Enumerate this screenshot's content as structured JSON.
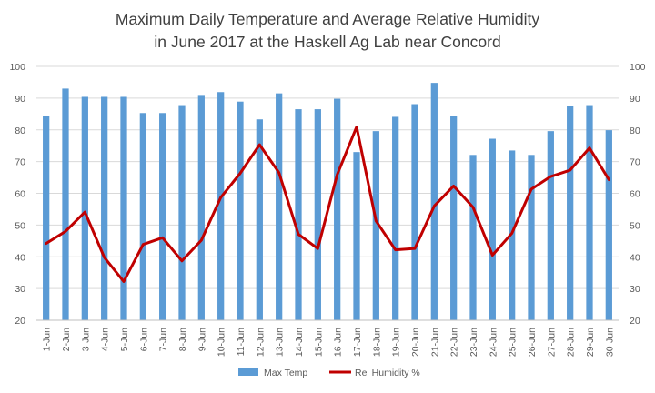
{
  "chart_data": {
    "type": "bar",
    "title": "Maximum Daily Temperature and Average Relative Humidity",
    "subtitle": "in June 2017 at the Haskell Ag Lab near Concord",
    "categories": [
      "1-Jun",
      "2-Jun",
      "3-Jun",
      "4-Jun",
      "5-Jun",
      "6-Jun",
      "7-Jun",
      "8-Jun",
      "9-Jun",
      "10-Jun",
      "11-Jun",
      "12-Jun",
      "13-Jun",
      "14-Jun",
      "15-Jun",
      "16-Jun",
      "17-Jun",
      "18-Jun",
      "19-Jun",
      "20-Jun",
      "21-Jun",
      "22-Jun",
      "23-Jun",
      "24-Jun",
      "25-Jun",
      "26-Jun",
      "27-Jun",
      "28-Jun",
      "29-Jun",
      "30-Jun"
    ],
    "series": [
      {
        "name": "Max Temp",
        "type": "bar",
        "axis": "left",
        "color": "#5b9bd5",
        "values": [
          84.3,
          93.0,
          90.4,
          90.4,
          90.4,
          85.3,
          85.3,
          87.8,
          91.0,
          91.9,
          88.9,
          83.3,
          91.5,
          86.5,
          86.5,
          89.8,
          73.0,
          79.6,
          84.1,
          88.1,
          94.8,
          84.5,
          72.1,
          77.2,
          73.5,
          72.1,
          79.6,
          87.5,
          87.8,
          79.9
        ]
      },
      {
        "name": "Rel Humidity %",
        "type": "line",
        "axis": "right",
        "color": "#c00000",
        "values": [
          44.2,
          48.0,
          54.1,
          39.8,
          32.2,
          43.9,
          46.0,
          38.7,
          45.2,
          58.7,
          66.3,
          75.3,
          66.5,
          47.1,
          42.6,
          65.9,
          80.9,
          51.3,
          42.2,
          42.6,
          56.0,
          62.3,
          55.6,
          40.5,
          47.4,
          61.3,
          65.3,
          67.3,
          74.3,
          64.3
        ]
      }
    ],
    "ylim": [
      20,
      100
    ],
    "y2lim": [
      20,
      100
    ],
    "yticks": [
      "20",
      "30",
      "40",
      "50",
      "60",
      "70",
      "80",
      "90",
      "100"
    ],
    "y2ticks": [
      "20",
      "30",
      "40",
      "50",
      "60",
      "70",
      "80",
      "90",
      "100"
    ],
    "grid": true,
    "legend_position": "bottom"
  }
}
